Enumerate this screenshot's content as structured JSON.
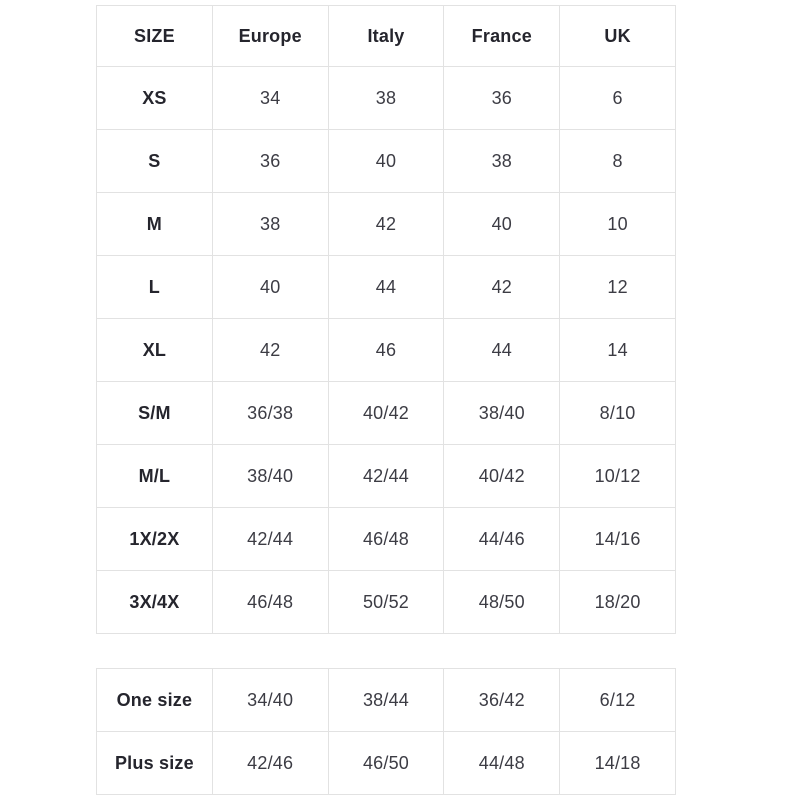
{
  "colors": {
    "background": "#ffffff",
    "border": "#e2e2e2",
    "header_text": "#25252d",
    "value_text": "#3c3c44"
  },
  "chart_data": [
    {
      "type": "table",
      "columns": [
        "SIZE",
        "Europe",
        "Italy",
        "France",
        "UK"
      ],
      "rows": [
        [
          "XS",
          "34",
          "38",
          "36",
          "6"
        ],
        [
          "S",
          "36",
          "40",
          "38",
          "8"
        ],
        [
          "M",
          "38",
          "42",
          "40",
          "10"
        ],
        [
          "L",
          "40",
          "44",
          "42",
          "12"
        ],
        [
          "XL",
          "42",
          "46",
          "44",
          "14"
        ],
        [
          "S/M",
          "36/38",
          "40/42",
          "38/40",
          "8/10"
        ],
        [
          "M/L",
          "38/40",
          "42/44",
          "40/42",
          "10/12"
        ],
        [
          "1X/2X",
          "42/44",
          "46/48",
          "44/46",
          "14/16"
        ],
        [
          "3X/4X",
          "46/48",
          "50/52",
          "48/50",
          "18/20"
        ]
      ]
    },
    {
      "type": "table",
      "columns": [],
      "rows": [
        [
          "One size",
          "34/40",
          "38/44",
          "36/42",
          "6/12"
        ],
        [
          "Plus size",
          "42/46",
          "46/50",
          "44/48",
          "14/18"
        ]
      ]
    }
  ]
}
